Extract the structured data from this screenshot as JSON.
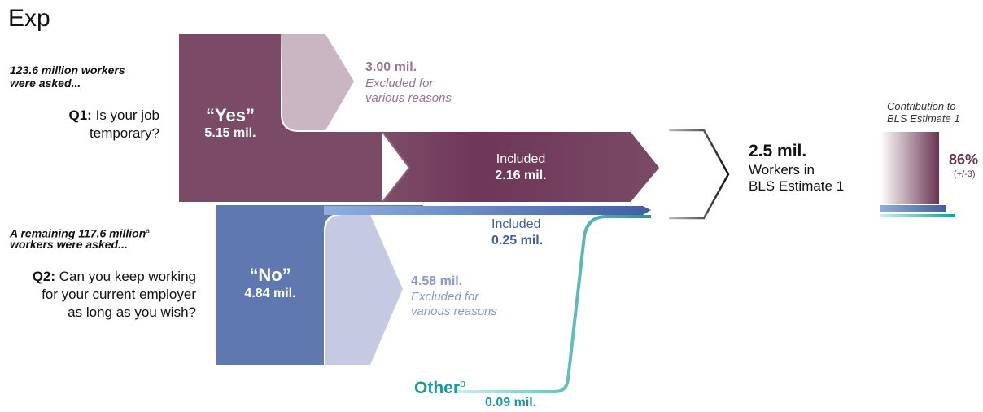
{
  "title": "Exp",
  "colors": {
    "yes": "#7a4a66",
    "yes_dark": "#6a3452",
    "yes_excluded": "#c9b6c2",
    "no": "#5f78b0",
    "no_dark": "#3f5f9f",
    "no_excluded": "#c6c9e2",
    "other": "#1a9a9a",
    "black": "#111111"
  },
  "intro1": {
    "line1": "123.6 million workers",
    "line2": "were asked..."
  },
  "q1": {
    "label": "Q1:",
    "text1": "Is your job",
    "text2": "temporary?"
  },
  "yes": {
    "label": "“Yes”",
    "value": "5.15 mil."
  },
  "yes_excluded": {
    "value": "3.00 mil.",
    "note1": "Excluded for",
    "note2": "various reasons"
  },
  "yes_included": {
    "label": "Included",
    "value": "2.16 mil."
  },
  "intro2": {
    "line1": "A remaining 117.6 million",
    "sup": "a",
    "line2": "workers were asked..."
  },
  "q2": {
    "label": "Q2:",
    "text1": "Can you keep working",
    "text2": "for your current employer",
    "text3": "as long as you wish?"
  },
  "no": {
    "label": "“No”",
    "value": "4.84 mil."
  },
  "no_included": {
    "label": "Included",
    "value": "0.25 mil."
  },
  "no_excluded": {
    "value": "4.58 mil.",
    "note1": "Excluded for",
    "note2": "various reasons"
  },
  "other": {
    "label": "Other",
    "sup": "b",
    "value": "0.09 mil."
  },
  "result": {
    "value": "2.5 mil.",
    "line1": "Workers in",
    "line2": "BLS Estimate 1"
  },
  "contribution": {
    "title1": "Contribution to",
    "title2": "BLS Estimate 1",
    "percent": "86%",
    "range": "(+/-3)"
  }
}
